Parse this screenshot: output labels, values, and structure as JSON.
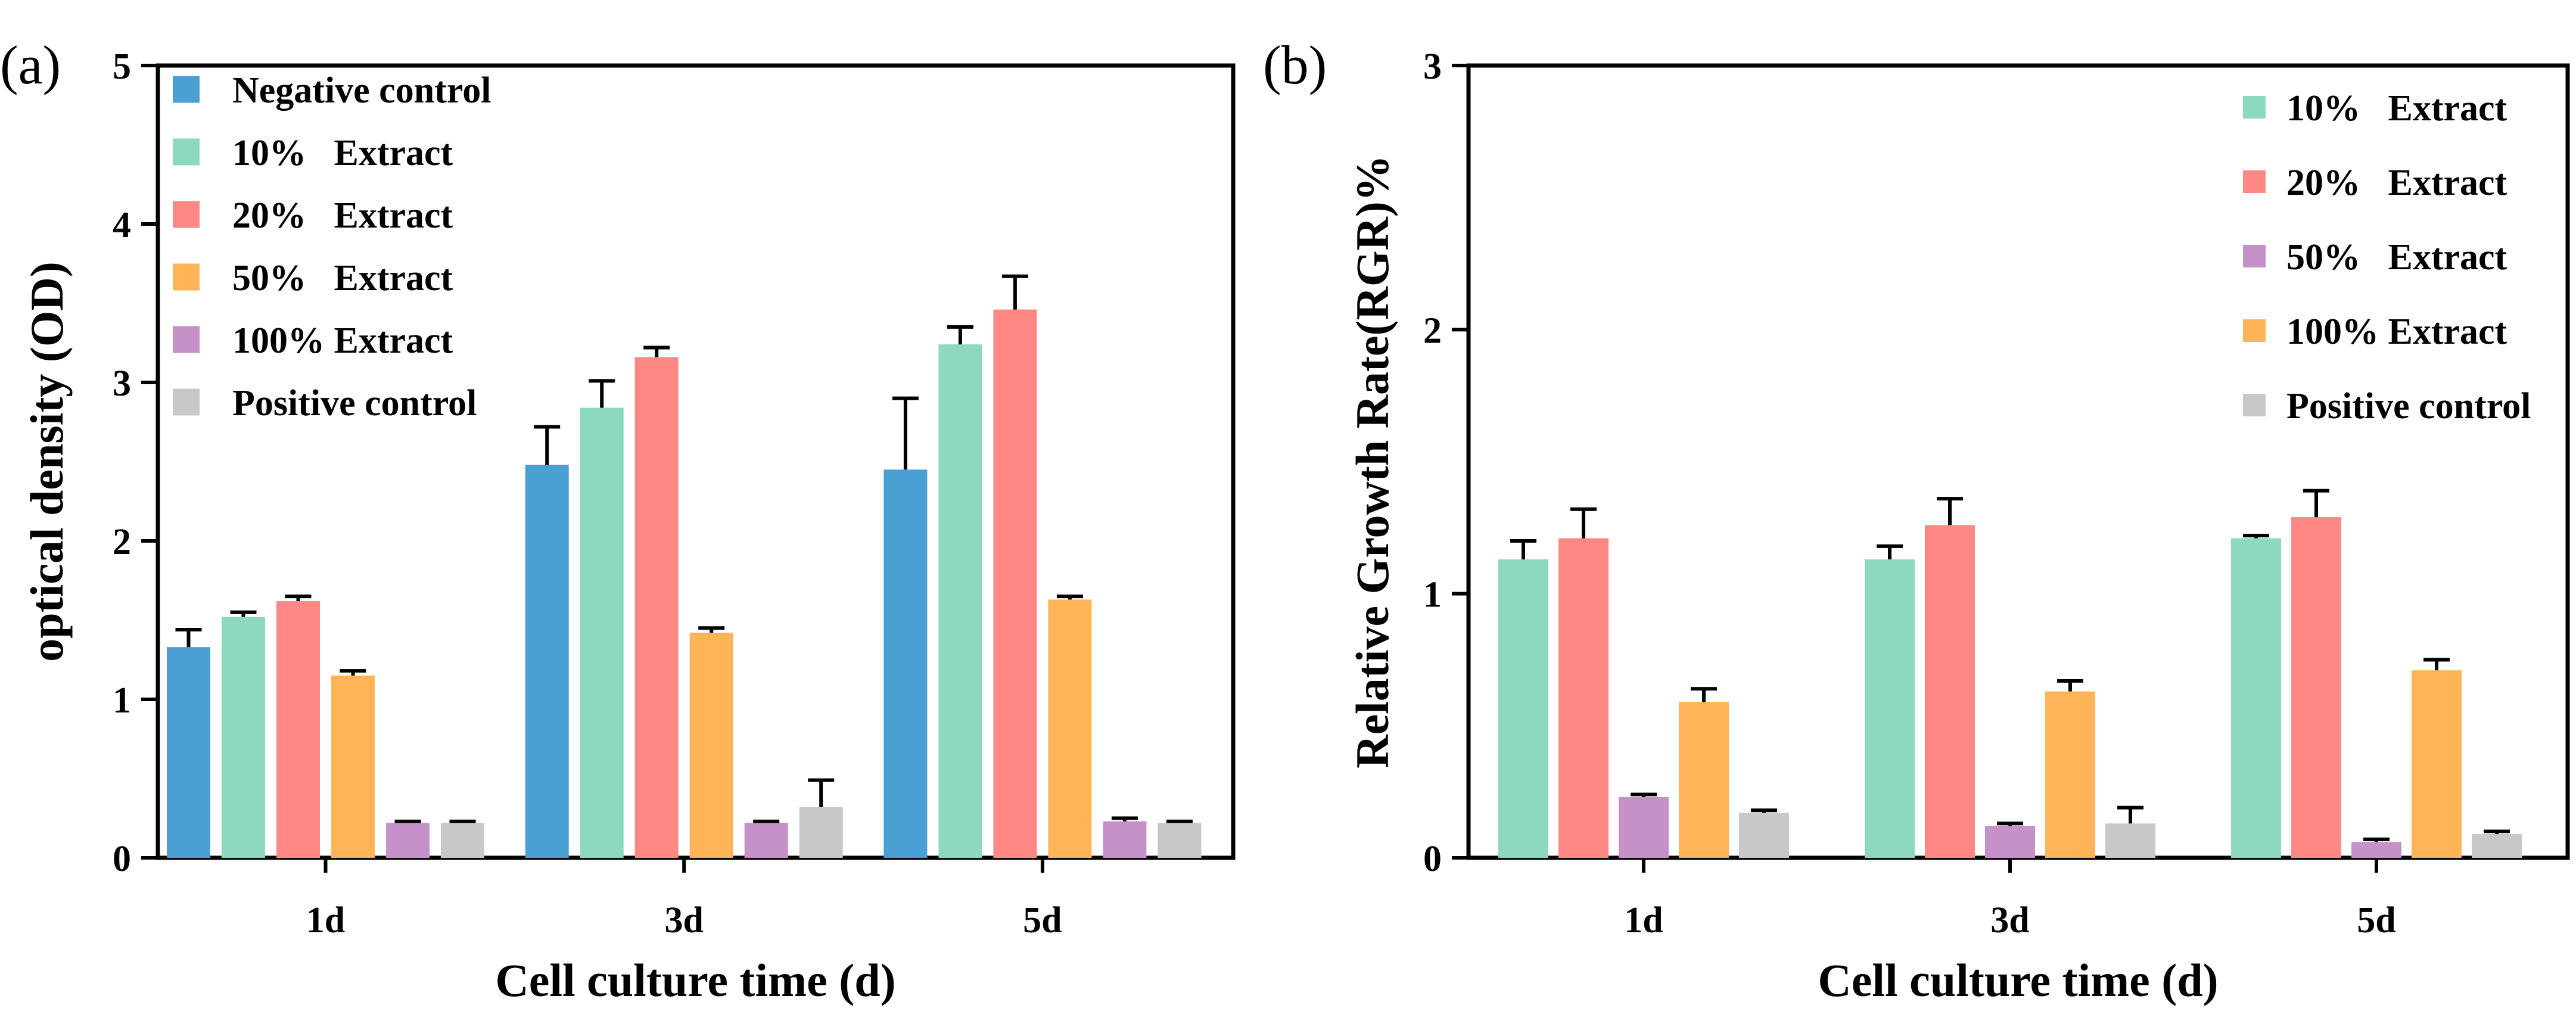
{
  "colors": {
    "negative_control": "#4A9FD5",
    "extract_10": "#8DD9BE",
    "extract_20": "#FF8784",
    "extract_50": "#FFB557",
    "extract_100": "#C690C9",
    "positive_control": "#C8C8C8"
  },
  "chart_data": [
    {
      "panel_label": "(a)",
      "type": "bar",
      "xlabel": "Cell culture time (d)",
      "ylabel": "optical density (OD)",
      "categories": [
        "1d",
        "3d",
        "5d"
      ],
      "ylim": [
        0,
        5
      ],
      "yticks": [
        "0",
        "1",
        "2",
        "3",
        "4",
        "5"
      ],
      "legend_position": "top-left",
      "series": [
        {
          "name": "Negative control",
          "color_key": "negative_control",
          "values": [
            1.33,
            2.48,
            2.45
          ],
          "errors": [
            0.11,
            0.24,
            0.45
          ]
        },
        {
          "name": "10%   Extract",
          "color_key": "extract_10",
          "values": [
            1.52,
            2.84,
            3.24
          ],
          "errors": [
            0.03,
            0.17,
            0.11
          ]
        },
        {
          "name": "20%   Extract",
          "color_key": "extract_20",
          "values": [
            1.62,
            3.16,
            3.46
          ],
          "errors": [
            0.03,
            0.06,
            0.21
          ]
        },
        {
          "name": "50%   Extract",
          "color_key": "extract_50",
          "values": [
            1.15,
            1.42,
            1.63
          ],
          "errors": [
            0.03,
            0.03,
            0.02
          ]
        },
        {
          "name": "100% Extract",
          "color_key": "extract_100",
          "values": [
            0.22,
            0.22,
            0.23
          ],
          "errors": [
            0.01,
            0.01,
            0.02
          ]
        },
        {
          "name": "Positive control",
          "color_key": "positive_control",
          "values": [
            0.22,
            0.32,
            0.22
          ],
          "errors": [
            0.01,
            0.17,
            0.01
          ]
        }
      ]
    },
    {
      "panel_label": "(b)",
      "type": "bar",
      "xlabel": "Cell culture time (d)",
      "ylabel": "Relative Growth Rate(RGR)%",
      "categories": [
        "1d",
        "3d",
        "5d"
      ],
      "ylim": [
        0,
        3
      ],
      "yticks": [
        "0",
        "1",
        "2",
        "3"
      ],
      "legend_position": "top-right",
      "series": [
        {
          "name": "10%   Extract",
          "color_key": "extract_10",
          "values": [
            1.13,
            1.13,
            1.21
          ],
          "errors": [
            0.07,
            0.05,
            0.01
          ]
        },
        {
          "name": "20%   Extract",
          "color_key": "extract_20",
          "values": [
            1.21,
            1.26,
            1.29
          ],
          "errors": [
            0.11,
            0.1,
            0.1
          ]
        },
        {
          "name": "50%   Extract",
          "color_key": "extract_100",
          "values": [
            0.23,
            0.12,
            0.06
          ],
          "errors": [
            0.01,
            0.01,
            0.01
          ]
        },
        {
          "name": "100% Extract",
          "color_key": "extract_50",
          "values": [
            0.59,
            0.63,
            0.71
          ],
          "errors": [
            0.05,
            0.04,
            0.04
          ]
        },
        {
          "name": "Positive control",
          "color_key": "positive_control",
          "values": [
            0.17,
            0.13,
            0.09
          ],
          "errors": [
            0.01,
            0.06,
            0.01
          ]
        }
      ]
    }
  ]
}
